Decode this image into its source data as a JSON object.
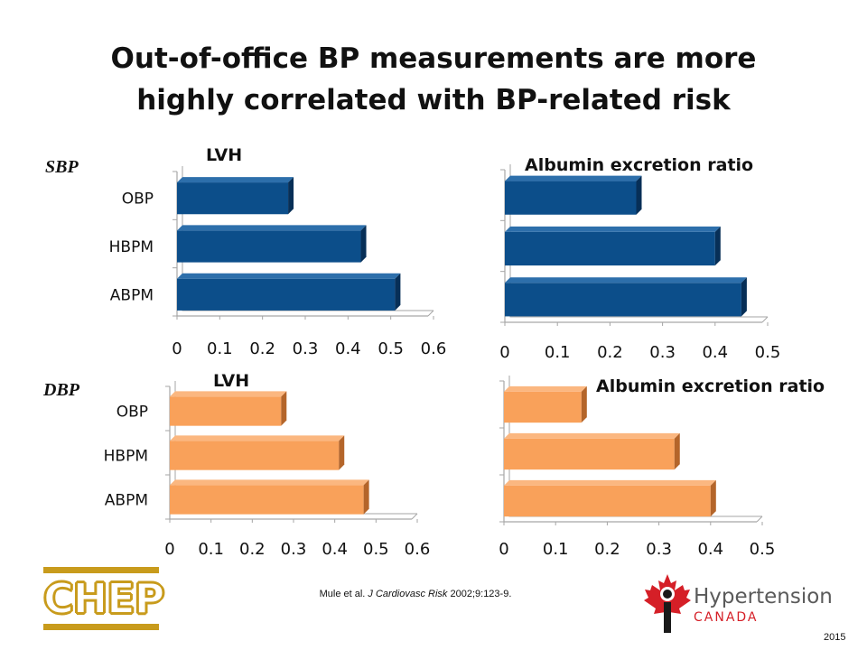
{
  "slide": {
    "title_line1": "Out-of-office BP measurements are more",
    "title_line2": "highly correlated with BP-related risk",
    "sbp_label": "SBP",
    "dbp_label": "DBP",
    "citation_prefix": "Mule et al. ",
    "citation_journal": "J Cardiovasc Risk",
    "citation_suffix": " 2002;9:123-9.",
    "year": "2015",
    "logos": {
      "chep": "CHEP",
      "hypertension_name": "Hypertension",
      "hypertension_sub": "CANADA"
    }
  },
  "colors": {
    "sbp_bar": "#0c4e8a",
    "sbp_bar_side": "#072f57",
    "sbp_bar_top": "#2d6fab",
    "dbp_bar": "#f9a15a",
    "dbp_bar_side": "#b4652a",
    "dbp_bar_top": "#fbb780",
    "axis": "#a6a6a6",
    "chep_gold": "#c89b1c",
    "hc_red": "#d51f27"
  },
  "chart_data": [
    {
      "type": "bar",
      "orientation": "horizontal",
      "title": "LVH",
      "group": "SBP",
      "categories": [
        "OBP",
        "HBPM",
        "ABPM"
      ],
      "values": [
        0.26,
        0.43,
        0.51
      ],
      "xlim": [
        0,
        0.6
      ],
      "xticks": [
        "0",
        "0.1",
        "0.2",
        "0.3",
        "0.4",
        "0.5",
        "0.6"
      ]
    },
    {
      "type": "bar",
      "orientation": "horizontal",
      "title": "Albumin excretion ratio",
      "group": "SBP",
      "categories": [
        "OBP",
        "HBPM",
        "ABPM"
      ],
      "values": [
        0.25,
        0.4,
        0.45
      ],
      "xlim": [
        0,
        0.5
      ],
      "xticks": [
        "0",
        "0.1",
        "0.2",
        "0.3",
        "0.4",
        "0.5"
      ]
    },
    {
      "type": "bar",
      "orientation": "horizontal",
      "title": "LVH",
      "group": "DBP",
      "categories": [
        "OBP",
        "HBPM",
        "ABPM"
      ],
      "values": [
        0.27,
        0.41,
        0.47
      ],
      "xlim": [
        0,
        0.6
      ],
      "xticks": [
        "0",
        "0.1",
        "0.2",
        "0.3",
        "0.4",
        "0.5",
        "0.6"
      ]
    },
    {
      "type": "bar",
      "orientation": "horizontal",
      "title": "Albumin excretion ratio",
      "group": "DBP",
      "categories": [
        "OBP",
        "HBPM",
        "ABPM"
      ],
      "values": [
        0.15,
        0.33,
        0.4
      ],
      "xlim": [
        0,
        0.5
      ],
      "xticks": [
        "0",
        "0.1",
        "0.2",
        "0.3",
        "0.4",
        "0.5"
      ]
    }
  ]
}
